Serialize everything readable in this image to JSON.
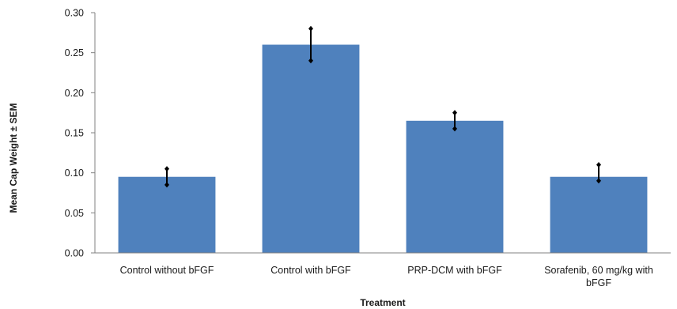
{
  "chart_data": {
    "type": "bar",
    "title": "",
    "xlabel": "Treatment",
    "ylabel": "Mean Cap Weight ± SEM",
    "ylim": [
      0,
      0.3
    ],
    "yticks": [
      "0.00",
      "0.05",
      "0.10",
      "0.15",
      "0.20",
      "0.25",
      "0.30"
    ],
    "grid": false,
    "legend": "none",
    "bar_color": "#4f81bd",
    "categories": [
      [
        "Control without bFGF"
      ],
      [
        "Control with bFGF"
      ],
      [
        "PRP-DCM with bFGF"
      ],
      [
        "Sorafenib, 60 mg/kg with",
        "bFGF"
      ]
    ],
    "values": [
      0.095,
      0.26,
      0.165,
      0.095
    ],
    "error_low": [
      0.085,
      0.24,
      0.155,
      0.09
    ],
    "error_high": [
      0.105,
      0.28,
      0.175,
      0.11
    ]
  }
}
